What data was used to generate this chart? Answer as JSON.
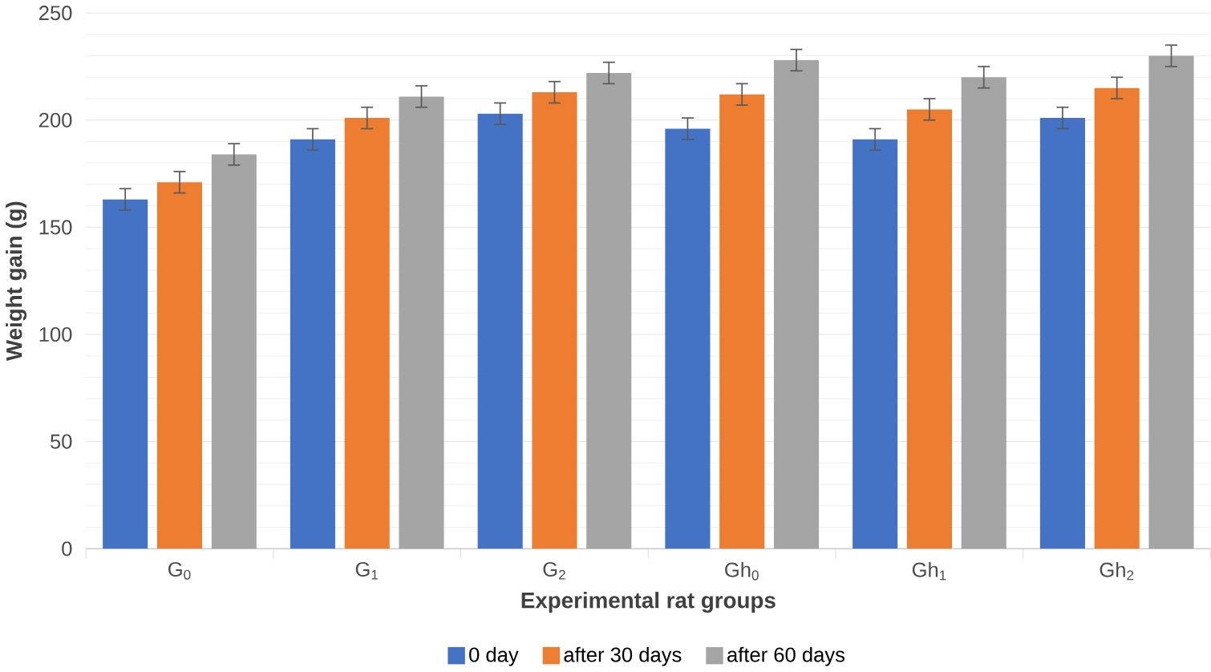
{
  "chart_data": {
    "type": "bar",
    "xlabel": "Experimental rat groups",
    "ylabel": "Weight gain (g)",
    "categories": [
      "G$_{0}$",
      "G$_{1}$",
      "G$_{2}$",
      "Gh$_{0}$",
      "Gh$_{1}$",
      "Gh$_{2}$"
    ],
    "series": [
      {
        "name": "0 day",
        "color": "#4472c4",
        "values": [
          163,
          191,
          203,
          196,
          191,
          201
        ],
        "errors": [
          5,
          5,
          5,
          5,
          5,
          5
        ]
      },
      {
        "name": "after 30 days",
        "color": "#ed7d31",
        "values": [
          171,
          201,
          213,
          212,
          205,
          215
        ],
        "errors": [
          5,
          5,
          5,
          5,
          5,
          5
        ]
      },
      {
        "name": "after 60 days",
        "color": "#a5a5a5",
        "values": [
          184,
          211,
          222,
          228,
          220,
          230
        ],
        "errors": [
          5,
          5,
          5,
          5,
          5,
          5
        ]
      }
    ],
    "ylim": [
      0,
      250
    ],
    "yticks": [
      0,
      50,
      100,
      150,
      200,
      250
    ],
    "grid": "y",
    "legend": "bottom"
  }
}
